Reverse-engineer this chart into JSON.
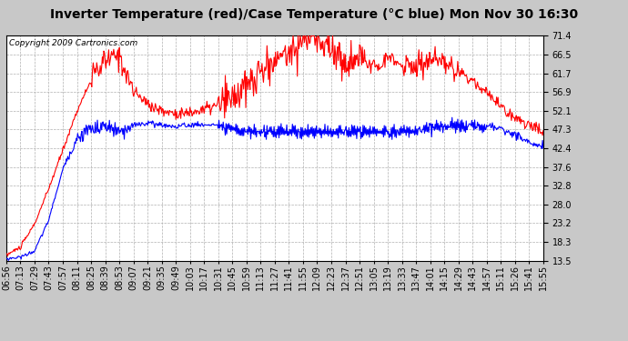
{
  "title": "Inverter Temperature (red)/Case Temperature (°C blue) Mon Nov 30 16:30",
  "copyright": "Copyright 2009 Cartronics.com",
  "background_color": "#c8c8c8",
  "plot_bg_color": "#ffffff",
  "grid_color": "#b0b0b0",
  "yticks": [
    13.5,
    18.3,
    23.2,
    28.0,
    32.8,
    37.6,
    42.4,
    47.3,
    52.1,
    56.9,
    61.7,
    66.5,
    71.4
  ],
  "ymin": 13.5,
  "ymax": 71.4,
  "xtick_labels": [
    "06:56",
    "07:13",
    "07:29",
    "07:43",
    "07:57",
    "08:11",
    "08:25",
    "08:39",
    "08:53",
    "09:07",
    "09:21",
    "09:35",
    "09:49",
    "10:03",
    "10:17",
    "10:31",
    "10:45",
    "10:59",
    "11:13",
    "11:27",
    "11:41",
    "11:55",
    "12:09",
    "12:23",
    "12:37",
    "12:51",
    "13:05",
    "13:19",
    "13:33",
    "13:47",
    "14:01",
    "14:15",
    "14:29",
    "14:43",
    "14:57",
    "15:11",
    "15:26",
    "15:41",
    "15:55"
  ],
  "red_line_color": "#ff0000",
  "blue_line_color": "#0000ff",
  "title_fontsize": 10,
  "copyright_fontsize": 6.5,
  "tick_fontsize": 7,
  "line_width": 0.8
}
